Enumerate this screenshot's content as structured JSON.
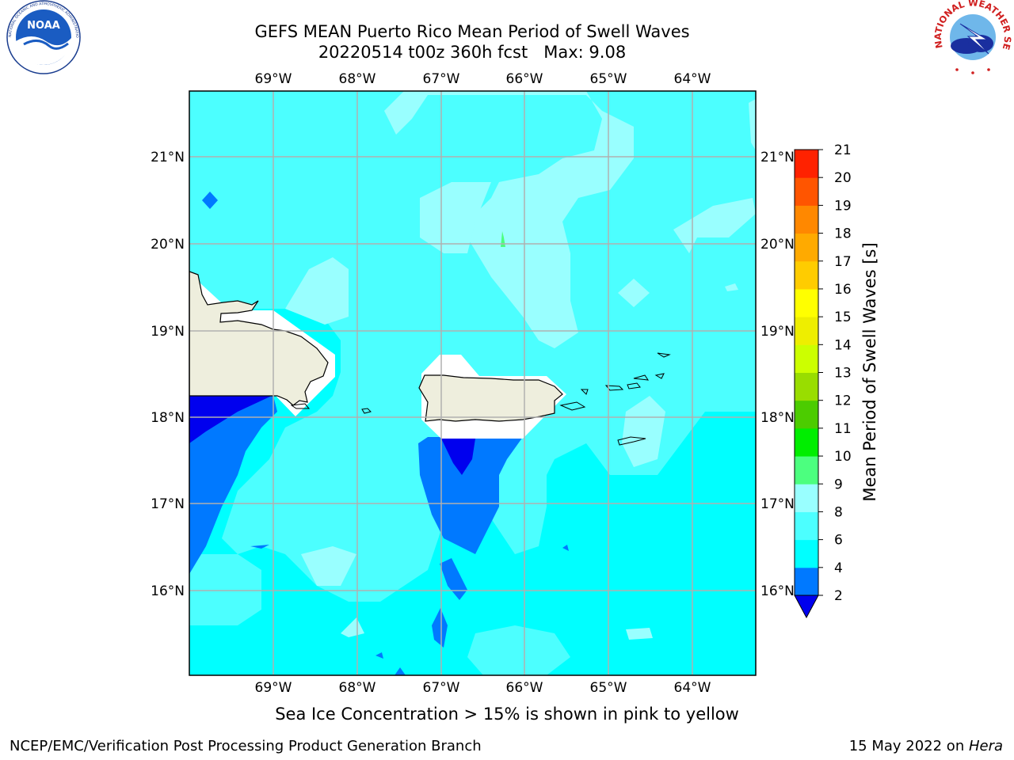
{
  "header": {
    "title_line1": "GEFS MEAN Puerto Rico Mean Period of Swell Waves",
    "date_fcst": "20220514 t00z 360h fcst",
    "max_label": "Max: 9.08",
    "noaa_logo_text": "NOAA",
    "noaa_ring_text": "NATIONAL OCEANIC AND ATMOSPHERIC ADMINISTRATION · U.S. DEPARTMENT OF COMMERCE",
    "nws_ring_text": "NATIONAL WEATHER SERVICE"
  },
  "map": {
    "lon_ticks": [
      "69°W",
      "68°W",
      "67°W",
      "66°W",
      "65°W",
      "64°W"
    ],
    "lat_ticks": [
      "21°N",
      "20°N",
      "19°N",
      "18°N",
      "17°N",
      "16°N"
    ],
    "gridlines": true,
    "colors": {
      "band_2_4": "#0079ff",
      "band_below_2": "#0000ee",
      "band_4_6": "#00ffff",
      "band_6_8": "#4cffff",
      "band_8_9": "#99ffff",
      "band_9_10": "#4cff7f",
      "land": "#eeeedd",
      "ice_free": "#ffffff",
      "grid": "#b0b0b0"
    }
  },
  "colorbar": {
    "label": "Mean Period of Swell Waves [s]",
    "ticks": [
      "2",
      "4",
      "6",
      "8",
      "9",
      "10",
      "11",
      "12",
      "13",
      "14",
      "15",
      "16",
      "17",
      "18",
      "19",
      "20",
      "21"
    ],
    "colors": [
      "#0079ff",
      "#00ffff",
      "#4cffff",
      "#99ffff",
      "#4cff7f",
      "#00ee00",
      "#4ccc00",
      "#99dd00",
      "#ccff00",
      "#eeee00",
      "#ffff00",
      "#ffcc00",
      "#ffaa00",
      "#ff8800",
      "#ff5500",
      "#ff2200"
    ],
    "extend_min_color": "#0000ee"
  },
  "footer": {
    "note": "Sea Ice Concentration > 15% is shown in pink to yellow",
    "credit": "NCEP/EMC/Verification Post Processing Product Generation Branch",
    "date_prefix": "15 May 2022 on ",
    "machine": "Hera"
  }
}
